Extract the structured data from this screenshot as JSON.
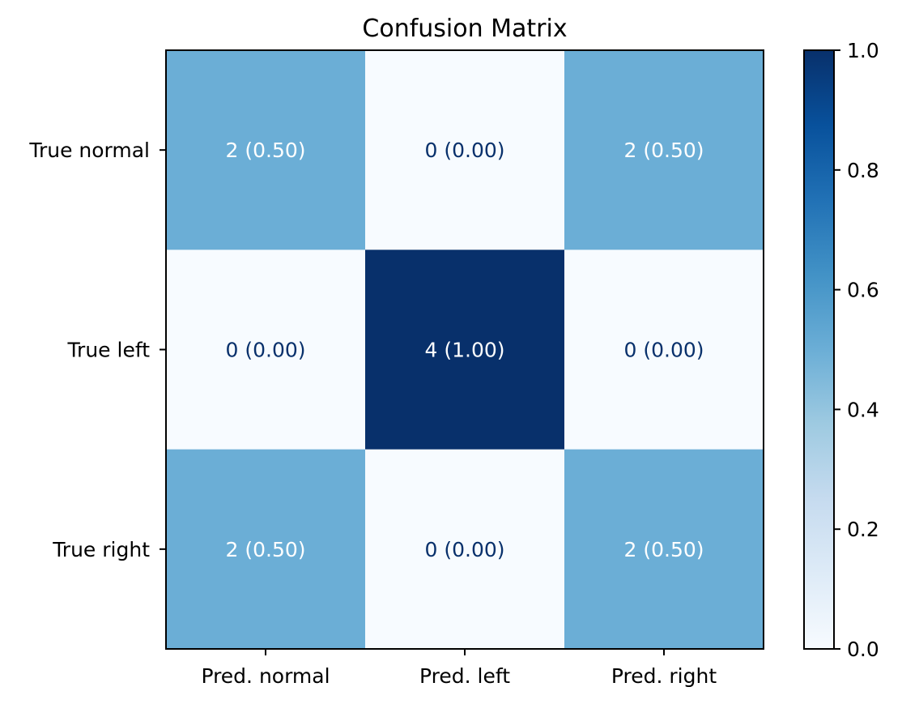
{
  "chart_data": {
    "type": "heatmap",
    "title": "Confusion Matrix",
    "xlabel": "",
    "ylabel": "",
    "x_categories": [
      "Pred. normal",
      "Pred. left",
      "Pred. right"
    ],
    "y_categories": [
      "True normal",
      "True left",
      "True right"
    ],
    "counts": [
      [
        2,
        0,
        2
      ],
      [
        0,
        4,
        0
      ],
      [
        2,
        0,
        2
      ]
    ],
    "values": [
      [
        0.5,
        0.0,
        0.5
      ],
      [
        0.0,
        1.0,
        0.0
      ],
      [
        0.5,
        0.0,
        0.5
      ]
    ],
    "cell_labels": [
      [
        "2 (0.50)",
        "0 (0.00)",
        "2 (0.50)"
      ],
      [
        "0 (0.00)",
        "4 (1.00)",
        "0 (0.00)"
      ],
      [
        "2 (0.50)",
        "0 (0.00)",
        "2 (0.50)"
      ]
    ],
    "colormap": "Blues",
    "colorbar": {
      "range": [
        0.0,
        1.0
      ],
      "ticks": [
        0.0,
        0.2,
        0.4,
        0.6,
        0.8,
        1.0
      ],
      "tick_labels": [
        "0.0",
        "0.2",
        "0.4",
        "0.6",
        "0.8",
        "1.0"
      ]
    },
    "grid": false,
    "colors": {
      "low": "#f7fbff",
      "mid": "#6baed6",
      "high": "#08306b",
      "text_on_dark": "#ffffff",
      "text_on_light": "#08306b"
    }
  }
}
